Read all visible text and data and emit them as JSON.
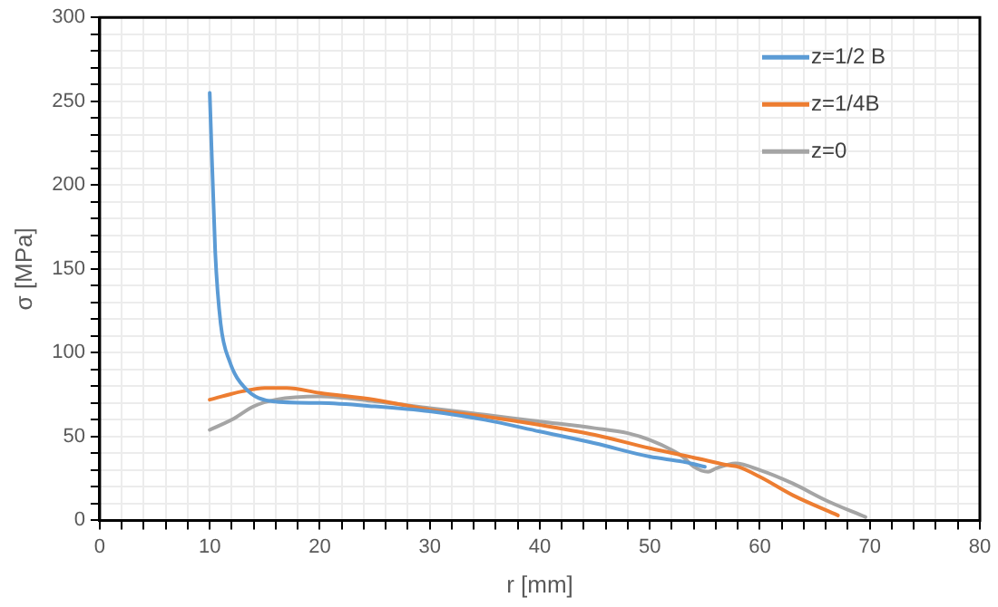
{
  "chart_data": {
    "type": "line",
    "xlabel": "r [mm]",
    "ylabel": "σ [MPa]",
    "xlim": [
      0,
      80
    ],
    "ylim": [
      0,
      300
    ],
    "xticks": [
      0,
      {
        "value": 2,
        "label": null
      },
      {
        "value": 4,
        "label": null
      },
      {
        "value": 6,
        "label": null
      },
      {
        "value": 8,
        "label": null
      },
      10,
      {
        "value": 12,
        "label": null
      },
      {
        "value": 14,
        "label": null
      },
      {
        "value": 16,
        "label": null
      },
      {
        "value": 18,
        "label": null
      },
      20,
      {
        "value": 22,
        "label": null
      },
      {
        "value": 24,
        "label": null
      },
      {
        "value": 26,
        "label": null
      },
      {
        "value": 28,
        "label": null
      },
      30,
      {
        "value": 32,
        "label": null
      },
      {
        "value": 34,
        "label": null
      },
      {
        "value": 36,
        "label": null
      },
      {
        "value": 38,
        "label": null
      },
      40,
      {
        "value": 42,
        "label": null
      },
      {
        "value": 44,
        "label": null
      },
      {
        "value": 46,
        "label": null
      },
      {
        "value": 48,
        "label": null
      },
      50,
      {
        "value": 52,
        "label": null
      },
      {
        "value": 54,
        "label": null
      },
      {
        "value": 56,
        "label": null
      },
      {
        "value": 58,
        "label": null
      },
      60,
      {
        "value": 62,
        "label": null
      },
      {
        "value": 64,
        "label": null
      },
      {
        "value": 66,
        "label": null
      },
      {
        "value": 68,
        "label": null
      },
      70,
      {
        "value": 72,
        "label": null
      },
      {
        "value": 74,
        "label": null
      },
      {
        "value": 76,
        "label": null
      },
      {
        "value": 78,
        "label": null
      },
      80
    ],
    "yticks": [
      0,
      {
        "value": 10,
        "label": null
      },
      {
        "value": 20,
        "label": null
      },
      {
        "value": 30,
        "label": null
      },
      {
        "value": 40,
        "label": null
      },
      50,
      {
        "value": 60,
        "label": null
      },
      {
        "value": 70,
        "label": null
      },
      {
        "value": 80,
        "label": null
      },
      {
        "value": 90,
        "label": null
      },
      100,
      {
        "value": 110,
        "label": null
      },
      {
        "value": 120,
        "label": null
      },
      {
        "value": 130,
        "label": null
      },
      {
        "value": 140,
        "label": null
      },
      150,
      {
        "value": 160,
        "label": null
      },
      {
        "value": 170,
        "label": null
      },
      {
        "value": 180,
        "label": null
      },
      {
        "value": 190,
        "label": null
      },
      200,
      {
        "value": 210,
        "label": null
      },
      {
        "value": 220,
        "label": null
      },
      {
        "value": 230,
        "label": null
      },
      {
        "value": 240,
        "label": null
      },
      250,
      {
        "value": 260,
        "label": null
      },
      {
        "value": 270,
        "label": null
      },
      {
        "value": 280,
        "label": null
      },
      {
        "value": 290,
        "label": null
      },
      300
    ],
    "grid": true,
    "legend": "top right",
    "marker": "none",
    "line_style": "solid",
    "series": [
      {
        "name": "z=1/2 B",
        "color": "#5b9bd5",
        "x": [
          10,
          10.5,
          11,
          11.8,
          13.2,
          15.7,
          20,
          25,
          30,
          35,
          40,
          45,
          50,
          53,
          55
        ],
        "values": [
          255,
          160,
          117,
          95,
          79,
          71,
          70,
          68,
          65,
          60,
          53,
          46,
          38,
          35,
          32
        ]
      },
      {
        "name": "z=1/4B",
        "color": "#ed7d31",
        "x": [
          10,
          13,
          15,
          17,
          20,
          25,
          30,
          35,
          40,
          45,
          50,
          55,
          57,
          58,
          60,
          63,
          67.1
        ],
        "values": [
          72,
          77,
          79,
          79,
          76,
          72,
          66,
          62,
          57,
          51,
          43,
          36,
          33,
          32,
          26,
          15,
          3
        ]
      },
      {
        "name": "z=0",
        "color": "#a5a5a5",
        "x": [
          10,
          12,
          14,
          16,
          20,
          25,
          30,
          35,
          40,
          45,
          48,
          50,
          52,
          53,
          54,
          55.3,
          56,
          57.8,
          60,
          63,
          66,
          69.6
        ],
        "values": [
          54,
          60,
          68,
          72,
          74,
          71,
          67,
          63,
          59,
          55,
          52,
          48,
          42,
          38,
          32,
          29,
          31,
          34,
          30,
          22,
          12,
          2
        ]
      }
    ]
  }
}
